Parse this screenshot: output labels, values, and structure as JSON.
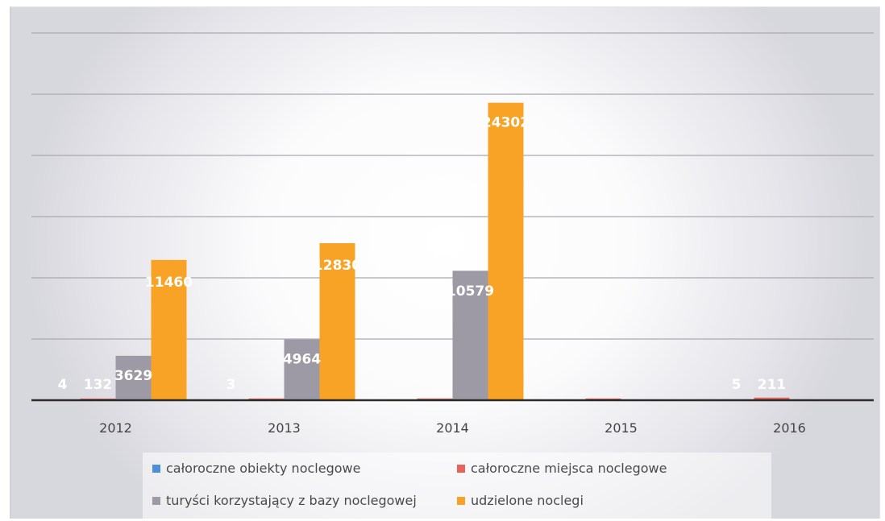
{
  "chart_data": {
    "type": "bar",
    "categories": [
      "2012",
      "2013",
      "2014",
      "2015",
      "2016"
    ],
    "series": [
      {
        "name": "całoroczne obiekty noclegowe",
        "color": "#4a90d9",
        "values": [
          4,
          3,
          3,
          3,
          5
        ],
        "labels": [
          "4",
          "3",
          "",
          "",
          "5"
        ]
      },
      {
        "name": "całoroczne miejsca noclegowe",
        "color": "#e8635a",
        "values": [
          132,
          140,
          140,
          140,
          211
        ],
        "labels": [
          "132",
          "",
          "",
          "",
          "211"
        ]
      },
      {
        "name": "turyści korzystający z bazy noclegowej",
        "color": "#9d9aa6",
        "values": [
          3629,
          4964,
          10579,
          0,
          0
        ],
        "labels": [
          "3629",
          "4964",
          "10579",
          "",
          ""
        ]
      },
      {
        "name": "udzielone noclegi",
        "color": "#f8a325",
        "values": [
          11460,
          12830,
          24302,
          0,
          0
        ],
        "labels": [
          "11460",
          "12830",
          "24302",
          "",
          ""
        ]
      }
    ],
    "ylim": [
      0,
      30000
    ],
    "grid": true,
    "legend_position": "bottom"
  }
}
